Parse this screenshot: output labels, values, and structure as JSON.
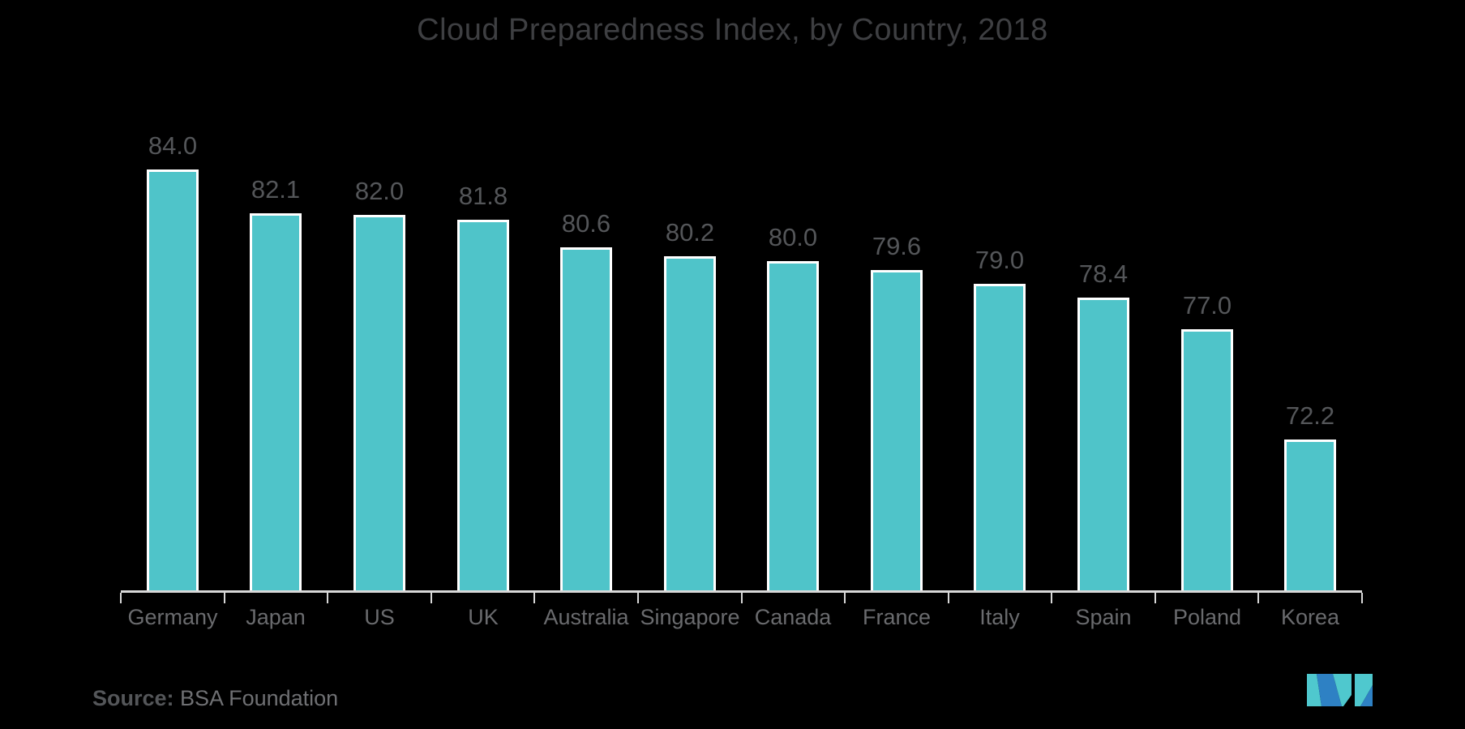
{
  "title": "Cloud Preparedness Index, by Country, 2018",
  "source": {
    "label": "Source:",
    "text": " BSA Foundation"
  },
  "logo": {
    "name": "mordor-intelligence-logo-mark",
    "teal": "#4FC8CE",
    "blue": "#2E81C4"
  },
  "colors": {
    "background": "#000000",
    "bar_fill": "#4FC4C9",
    "bar_border": "#FFFFFF",
    "axis_line": "#D8D8D8",
    "title_text": "#3E3F42",
    "value_label_text": "#545659",
    "category_label_text": "#6A6B6E"
  },
  "chart_data": {
    "type": "bar",
    "title": "Cloud Preparedness Index, by Country, 2018",
    "categories": [
      "Germany",
      "Japan",
      "US",
      "UK",
      "Australia",
      "Singapore",
      "Canada",
      "France",
      "Italy",
      "Spain",
      "Poland",
      "Korea"
    ],
    "values": [
      84.0,
      82.1,
      82.0,
      81.8,
      80.6,
      80.2,
      80.0,
      79.6,
      79.0,
      78.4,
      77.0,
      72.2
    ],
    "value_labels": [
      "84.0",
      "82.1",
      "82.0",
      "81.8",
      "80.6",
      "80.2",
      "80.0",
      "79.6",
      "79.0",
      "78.4",
      "77.0",
      "72.2"
    ],
    "xlabel": "",
    "ylabel": "",
    "ylim": [
      65.6,
      84.0
    ],
    "grid": false,
    "legend": "none",
    "bar_labels_shown": true,
    "source": "BSA Foundation"
  }
}
